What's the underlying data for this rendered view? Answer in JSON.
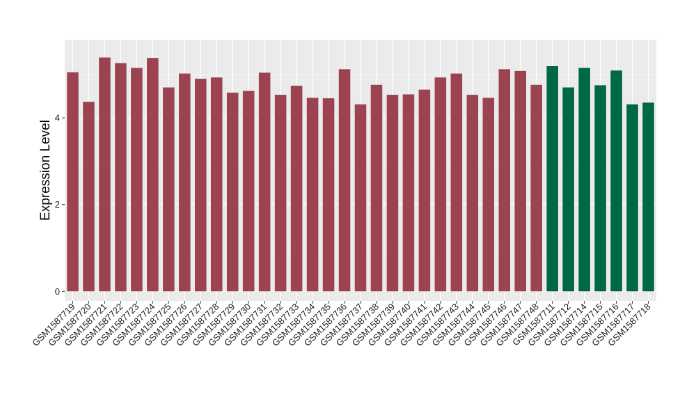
{
  "chart_data": {
    "type": "bar",
    "ylabel": "Expression Level",
    "xlabel": "",
    "ylim": [
      -0.22,
      5.8
    ],
    "yticks": [
      0,
      2,
      4
    ],
    "grid": true,
    "colors": {
      "group_a": "#9B4350",
      "group_b": "#006747",
      "panel_bg": "#EBEBEB",
      "grid": "#FFFFFF"
    },
    "categories": [
      "GSM1587719",
      "GSM1587720",
      "GSM1587721",
      "GSM1587722",
      "GSM1587723",
      "GSM1587724",
      "GSM1587725",
      "GSM1587726",
      "GSM1587727",
      "GSM1587728",
      "GSM1587729",
      "GSM1587730",
      "GSM1587731",
      "GSM1587732",
      "GSM1587733",
      "GSM1587734",
      "GSM1587735",
      "GSM1587736",
      "GSM1587737",
      "GSM1587738",
      "GSM1587739",
      "GSM1587740",
      "GSM1587741",
      "GSM1587742",
      "GSM1587743",
      "GSM1587744",
      "GSM1587745",
      "GSM1587746",
      "GSM1587747",
      "GSM1587748",
      "GSM1587711",
      "GSM1587712",
      "GSM1587714",
      "GSM1587715",
      "GSM1587716",
      "GSM1587717",
      "GSM1587718"
    ],
    "values": [
      5.05,
      4.37,
      5.39,
      5.26,
      5.15,
      5.38,
      4.7,
      5.02,
      4.9,
      4.93,
      4.58,
      4.62,
      5.04,
      4.53,
      4.74,
      4.46,
      4.45,
      5.12,
      4.31,
      4.76,
      4.53,
      4.54,
      4.65,
      4.93,
      5.02,
      4.53,
      4.46,
      5.12,
      5.08,
      4.76,
      5.19,
      4.7,
      5.15,
      4.75,
      5.09,
      4.31,
      4.35
    ],
    "groups": [
      "a",
      "a",
      "a",
      "a",
      "a",
      "a",
      "a",
      "a",
      "a",
      "a",
      "a",
      "a",
      "a",
      "a",
      "a",
      "a",
      "a",
      "a",
      "a",
      "a",
      "a",
      "a",
      "a",
      "a",
      "a",
      "a",
      "a",
      "a",
      "a",
      "a",
      "b",
      "b",
      "b",
      "b",
      "b",
      "b",
      "b"
    ]
  }
}
